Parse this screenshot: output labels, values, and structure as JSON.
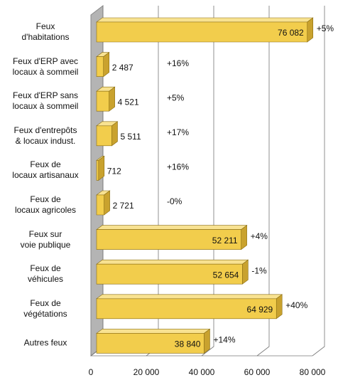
{
  "chart_data": {
    "type": "bar3d_horizontal",
    "categories": [
      "Feux\nd'habitations",
      "Feux d'ERP avec\nlocaux à sommeil",
      "Feux d'ERP sans\nlocaux à sommeil",
      "Feux d'entrepôts\n& locaux indust.",
      "Feux de\nlocaux artisanaux",
      "Feux de\nlocaux agricoles",
      "Feux sur\nvoie publique",
      "Feux de\nvéhicules",
      "Feux de\nvégétations",
      "Autres feux"
    ],
    "values": [
      76082,
      2487,
      4521,
      5511,
      712,
      2721,
      52211,
      52654,
      64929,
      38840
    ],
    "value_labels": [
      "76 082",
      "2 487",
      "4 521",
      "5 511",
      "712",
      "2 721",
      "52 211",
      "52 654",
      "64 929",
      "38 840"
    ],
    "changes": [
      "+5%",
      "+16%",
      "+5%",
      "+17%",
      "+16%",
      "-0%",
      "+4%",
      "-1%",
      "+40%",
      "+14%"
    ],
    "color": "#f2cd4c",
    "xlim": [
      0,
      80000
    ],
    "xticks": [
      0,
      {
        "value": 20000,
        "label": "20 000"
      },
      {
        "value": 40000,
        "label": "40 000"
      },
      {
        "value": 60000,
        "label": "60 000"
      },
      {
        "value": 80000,
        "label": "80 000"
      }
    ],
    "grid": true
  }
}
